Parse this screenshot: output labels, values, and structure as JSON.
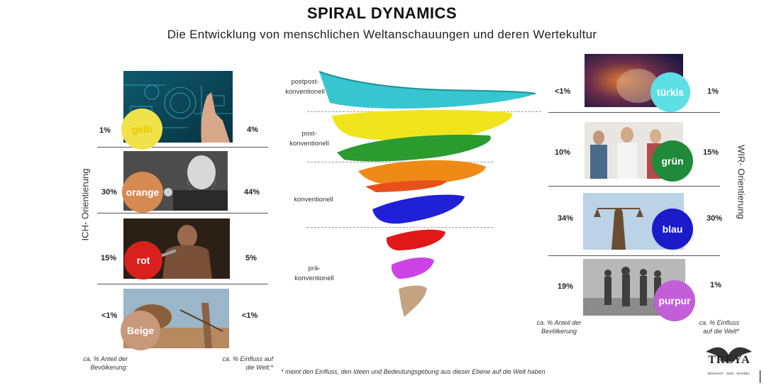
{
  "header": {
    "title": "SPIRAL DYNAMICS",
    "subtitle": "Die Entwicklung von menschlichen Weltanschauungen und deren Wertekultur"
  },
  "left": {
    "axis_label": "ICH- Orientierung",
    "rows": [
      {
        "name": "gelb",
        "population": "1%",
        "influence": "4%",
        "color": "#f2e24a"
      },
      {
        "name": "orange",
        "population": "30%",
        "influence": "44%",
        "color": "#d58a52"
      },
      {
        "name": "rot",
        "population": "15%",
        "influence": "5%",
        "color": "#d9201c"
      },
      {
        "name": "Beige",
        "population": "<1%",
        "influence": "<1%",
        "color": "#c8987a"
      }
    ],
    "footer_population": "ca. % Anteil der Bevölkerung:",
    "footer_influence": "ca. % Einfluss auf die Welt:*"
  },
  "right": {
    "axis_label": "WIR- Orientierung",
    "rows": [
      {
        "name": "türkis",
        "population": "<1%",
        "influence": "1%",
        "color": "#5edfe6"
      },
      {
        "name": "grün",
        "population": "10%",
        "influence": "15%",
        "color": "#1f8a3a"
      },
      {
        "name": "blau",
        "population": "34%",
        "influence": "30%",
        "color": "#1b1bc9"
      },
      {
        "name": "purpur",
        "population": "19%",
        "influence": "1%",
        "color": "#c25fd8"
      }
    ],
    "footer_population": "ca. % Anteil der Bevölkerung",
    "footer_influence": "ca. % Einfluss auf die Welt*"
  },
  "center": {
    "stages": [
      "postpost-\nkonventionell",
      "post-\nkonventionell",
      "konventionell",
      "prä-\nkonventionell"
    ]
  },
  "footnote": "* meint den Einfluss, den Ideen und Bedeutungsgebung aus dieser Ebene auf die Welt haben",
  "logo": {
    "text": "TREYA",
    "tagline": "BEWUSST · SEIN · WANDEL"
  }
}
